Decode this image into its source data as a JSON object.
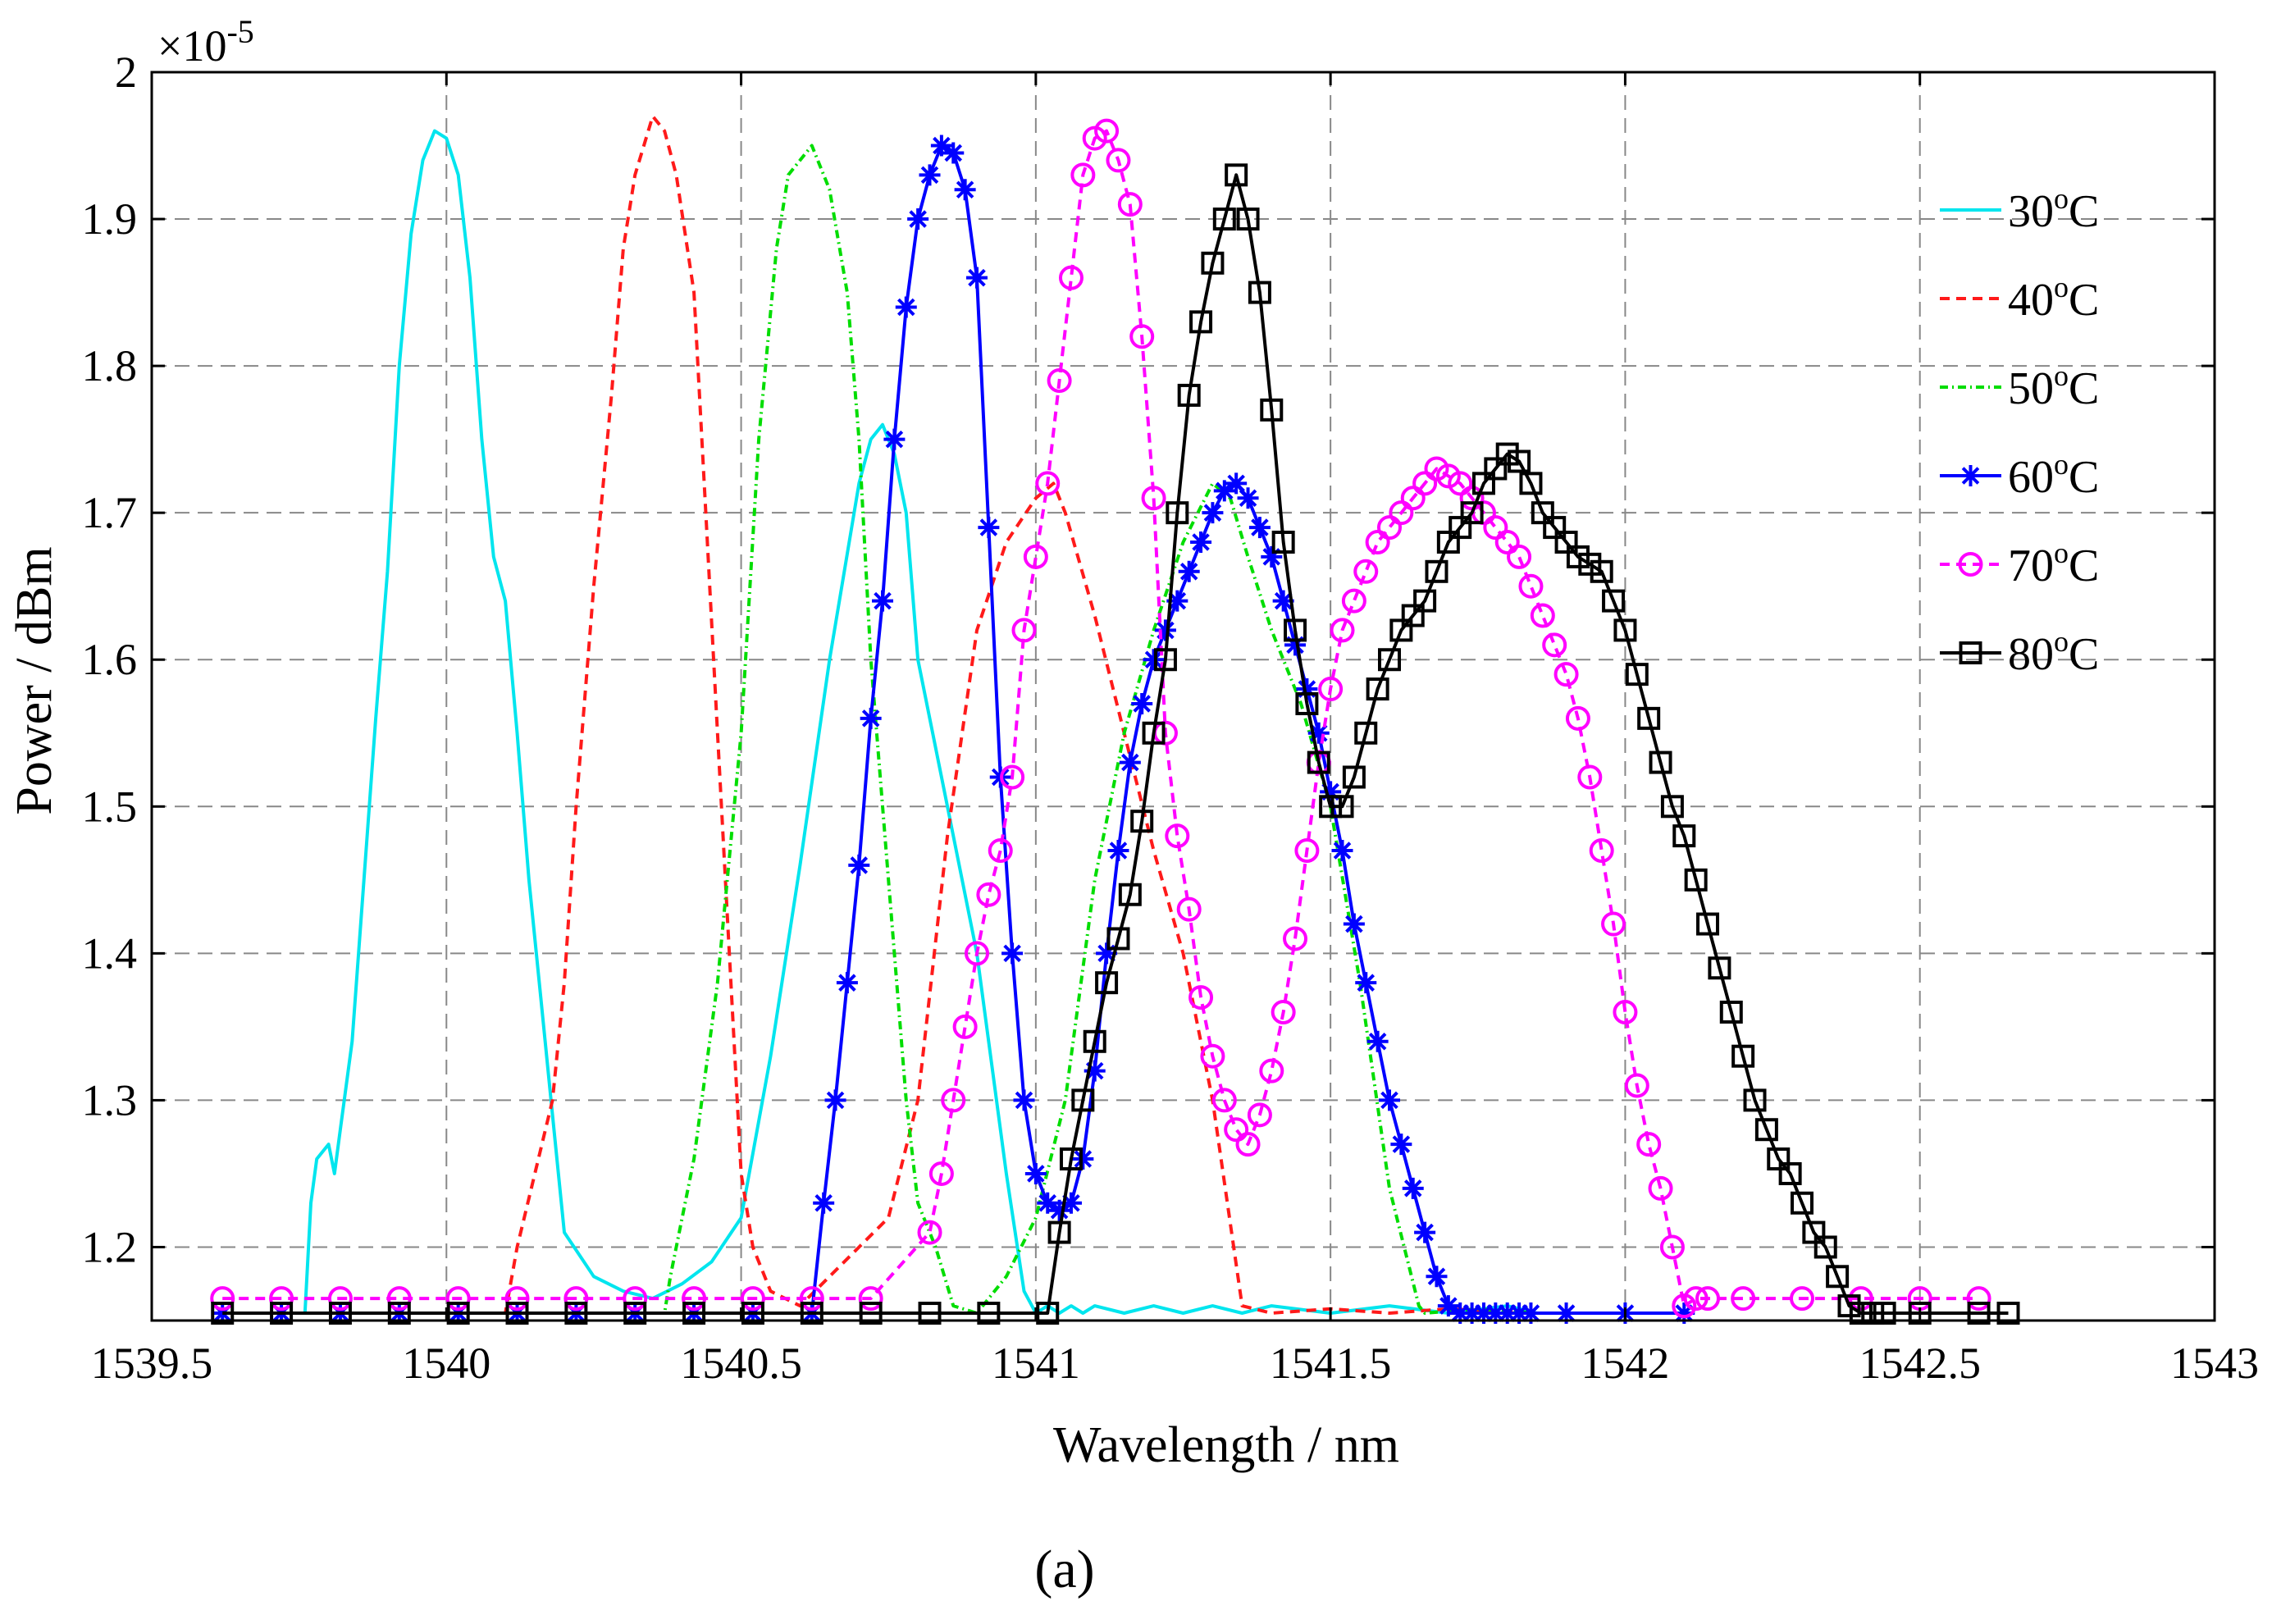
{
  "chart_data": {
    "type": "line",
    "title": "",
    "xlabel": "Wavelength / nm",
    "ylabel": "Power / dBm",
    "caption": "(a)",
    "y_multiplier": "×10",
    "y_multiplier_exponent": "-5",
    "xlim": [
      1539.6,
      1543
    ],
    "ylim": [
      1.15,
      2.0
    ],
    "grid": true,
    "legend_position": "top-right",
    "xticks": [
      1539.5,
      1540,
      1540.5,
      1541,
      1541.5,
      1542,
      1542.5,
      1543
    ],
    "xtick_labels": [
      "1539.5",
      "1540",
      "1540.5",
      "1541",
      "1541.5",
      "1542",
      "1542.5",
      "1543"
    ],
    "yticks": [
      1.2,
      1.3,
      1.4,
      1.5,
      1.6,
      1.7,
      1.8,
      1.9,
      2.0
    ],
    "ytick_labels": [
      "1.2",
      "1.3",
      "1.4",
      "1.5",
      "1.6",
      "1.7",
      "1.8",
      "1.9",
      "2"
    ],
    "series": [
      {
        "name": "30°C",
        "label_main": "30",
        "label_sup": "o",
        "label_unit": "C",
        "color": "#00e5ee",
        "dash": "",
        "marker": "none",
        "x": [
          1539.62,
          1539.76,
          1539.77,
          1539.78,
          1539.8,
          1539.81,
          1539.82,
          1539.84,
          1539.86,
          1539.88,
          1539.9,
          1539.92,
          1539.94,
          1539.96,
          1539.98,
          1540.0,
          1540.02,
          1540.04,
          1540.06,
          1540.08,
          1540.1,
          1540.12,
          1540.14,
          1540.16,
          1540.18,
          1540.2,
          1540.25,
          1540.3,
          1540.35,
          1540.4,
          1540.45,
          1540.5,
          1540.55,
          1540.6,
          1540.65,
          1540.7,
          1540.72,
          1540.74,
          1540.76,
          1540.78,
          1540.8,
          1540.85,
          1540.9,
          1540.95,
          1540.98,
          1541.0,
          1541.02,
          1541.04,
          1541.06,
          1541.08,
          1541.1,
          1541.15,
          1541.2,
          1541.25,
          1541.3,
          1541.35,
          1541.4,
          1541.5,
          1541.6,
          1541.7,
          1541.8,
          1541.85
        ],
        "y": [
          1.155,
          1.155,
          1.23,
          1.26,
          1.27,
          1.25,
          1.28,
          1.34,
          1.45,
          1.56,
          1.66,
          1.8,
          1.89,
          1.94,
          1.96,
          1.955,
          1.93,
          1.86,
          1.75,
          1.67,
          1.64,
          1.55,
          1.45,
          1.37,
          1.29,
          1.21,
          1.18,
          1.17,
          1.165,
          1.175,
          1.19,
          1.22,
          1.33,
          1.46,
          1.6,
          1.72,
          1.75,
          1.76,
          1.74,
          1.7,
          1.6,
          1.5,
          1.4,
          1.25,
          1.17,
          1.155,
          1.16,
          1.155,
          1.16,
          1.155,
          1.16,
          1.155,
          1.16,
          1.155,
          1.16,
          1.155,
          1.16,
          1.155,
          1.16,
          1.155,
          1.16,
          1.155
        ]
      },
      {
        "name": "40°C",
        "label_main": "40",
        "label_sup": "o",
        "label_unit": "C",
        "color": "#ff1a1a",
        "dash": "12,8",
        "marker": "none",
        "x": [
          1539.62,
          1540.1,
          1540.12,
          1540.15,
          1540.18,
          1540.2,
          1540.22,
          1540.25,
          1540.28,
          1540.3,
          1540.32,
          1540.35,
          1540.37,
          1540.39,
          1540.42,
          1540.44,
          1540.46,
          1540.48,
          1540.5,
          1540.52,
          1540.55,
          1540.6,
          1540.65,
          1540.7,
          1540.75,
          1540.8,
          1540.85,
          1540.9,
          1540.95,
          1541.0,
          1541.03,
          1541.05,
          1541.1,
          1541.15,
          1541.2,
          1541.25,
          1541.3,
          1541.35,
          1541.4,
          1541.5,
          1541.6,
          1541.7,
          1541.85
        ],
        "y": [
          1.155,
          1.155,
          1.2,
          1.25,
          1.3,
          1.38,
          1.5,
          1.65,
          1.78,
          1.88,
          1.93,
          1.97,
          1.96,
          1.93,
          1.85,
          1.7,
          1.55,
          1.4,
          1.25,
          1.2,
          1.17,
          1.16,
          1.18,
          1.2,
          1.22,
          1.3,
          1.48,
          1.62,
          1.68,
          1.71,
          1.72,
          1.7,
          1.63,
          1.55,
          1.47,
          1.4,
          1.3,
          1.16,
          1.155,
          1.158,
          1.155,
          1.158,
          1.155
        ]
      },
      {
        "name": "50°C",
        "label_main": "50",
        "label_sup": "o",
        "label_unit": "C",
        "color": "#00dd00",
        "dash": "10,5,2,5",
        "marker": "none",
        "x": [
          1539.62,
          1540.37,
          1540.38,
          1540.42,
          1540.46,
          1540.5,
          1540.53,
          1540.56,
          1540.58,
          1540.6,
          1540.62,
          1540.65,
          1540.68,
          1540.7,
          1540.72,
          1540.75,
          1540.78,
          1540.8,
          1540.83,
          1540.86,
          1540.9,
          1540.95,
          1541.0,
          1541.05,
          1541.1,
          1541.15,
          1541.2,
          1541.25,
          1541.3,
          1541.33,
          1541.36,
          1541.4,
          1541.45,
          1541.5,
          1541.55,
          1541.6,
          1541.65,
          1541.66,
          1541.75,
          1541.85
        ],
        "y": [
          1.155,
          1.155,
          1.18,
          1.26,
          1.38,
          1.55,
          1.75,
          1.88,
          1.93,
          1.94,
          1.95,
          1.92,
          1.85,
          1.75,
          1.6,
          1.45,
          1.3,
          1.23,
          1.2,
          1.16,
          1.155,
          1.18,
          1.22,
          1.3,
          1.45,
          1.55,
          1.62,
          1.68,
          1.72,
          1.71,
          1.67,
          1.62,
          1.57,
          1.5,
          1.38,
          1.24,
          1.16,
          1.155,
          1.158,
          1.155
        ]
      },
      {
        "name": "60°C",
        "label_main": "60",
        "label_sup": "o",
        "label_unit": "C",
        "color": "#0000ff",
        "dash": "",
        "marker": "star",
        "x": [
          1539.62,
          1539.72,
          1539.82,
          1539.92,
          1540.02,
          1540.12,
          1540.22,
          1540.32,
          1540.42,
          1540.52,
          1540.62,
          1540.64,
          1540.66,
          1540.68,
          1540.7,
          1540.72,
          1540.74,
          1540.76,
          1540.78,
          1540.8,
          1540.82,
          1540.84,
          1540.86,
          1540.88,
          1540.9,
          1540.92,
          1540.94,
          1540.96,
          1540.98,
          1541.0,
          1541.02,
          1541.04,
          1541.06,
          1541.08,
          1541.1,
          1541.12,
          1541.14,
          1541.16,
          1541.18,
          1541.2,
          1541.22,
          1541.24,
          1541.26,
          1541.28,
          1541.3,
          1541.32,
          1541.34,
          1541.36,
          1541.38,
          1541.4,
          1541.42,
          1541.44,
          1541.46,
          1541.48,
          1541.5,
          1541.52,
          1541.54,
          1541.56,
          1541.58,
          1541.6,
          1541.62,
          1541.64,
          1541.66,
          1541.68,
          1541.7,
          1541.72,
          1541.74,
          1541.76,
          1541.78,
          1541.8,
          1541.82,
          1541.84,
          1541.9,
          1542.0,
          1542.1
        ],
        "y": [
          1.155,
          1.155,
          1.155,
          1.155,
          1.155,
          1.155,
          1.155,
          1.155,
          1.155,
          1.155,
          1.155,
          1.23,
          1.3,
          1.38,
          1.46,
          1.56,
          1.64,
          1.75,
          1.84,
          1.9,
          1.93,
          1.95,
          1.945,
          1.92,
          1.86,
          1.69,
          1.52,
          1.4,
          1.3,
          1.25,
          1.23,
          1.225,
          1.23,
          1.26,
          1.32,
          1.4,
          1.47,
          1.53,
          1.57,
          1.6,
          1.62,
          1.64,
          1.66,
          1.68,
          1.7,
          1.715,
          1.72,
          1.71,
          1.69,
          1.67,
          1.64,
          1.61,
          1.58,
          1.55,
          1.51,
          1.47,
          1.42,
          1.38,
          1.34,
          1.3,
          1.27,
          1.24,
          1.21,
          1.18,
          1.16,
          1.155,
          1.155,
          1.155,
          1.155,
          1.155,
          1.155,
          1.155,
          1.155,
          1.155,
          1.155
        ]
      },
      {
        "name": "70°C",
        "label_main": "70",
        "label_sup": "o",
        "label_unit": "C",
        "color": "#ff00ff",
        "dash": "12,8",
        "marker": "circle",
        "x": [
          1539.62,
          1539.72,
          1539.82,
          1539.92,
          1540.02,
          1540.12,
          1540.22,
          1540.32,
          1540.42,
          1540.52,
          1540.62,
          1540.72,
          1540.82,
          1540.84,
          1540.86,
          1540.88,
          1540.9,
          1540.92,
          1540.94,
          1540.96,
          1540.98,
          1541.0,
          1541.02,
          1541.04,
          1541.06,
          1541.08,
          1541.1,
          1541.12,
          1541.14,
          1541.16,
          1541.18,
          1541.2,
          1541.22,
          1541.24,
          1541.26,
          1541.28,
          1541.3,
          1541.32,
          1541.34,
          1541.36,
          1541.38,
          1541.4,
          1541.42,
          1541.44,
          1541.46,
          1541.48,
          1541.5,
          1541.52,
          1541.54,
          1541.56,
          1541.58,
          1541.6,
          1541.62,
          1541.64,
          1541.66,
          1541.68,
          1541.7,
          1541.72,
          1541.74,
          1541.76,
          1541.78,
          1541.8,
          1541.82,
          1541.84,
          1541.86,
          1541.88,
          1541.9,
          1541.92,
          1541.94,
          1541.96,
          1541.98,
          1542.0,
          1542.02,
          1542.04,
          1542.06,
          1542.08,
          1542.1,
          1542.12,
          1542.14,
          1542.2,
          1542.3,
          1542.4,
          1542.5,
          1542.6
        ],
        "y": [
          1.165,
          1.165,
          1.165,
          1.165,
          1.165,
          1.165,
          1.165,
          1.165,
          1.165,
          1.165,
          1.165,
          1.165,
          1.21,
          1.25,
          1.3,
          1.35,
          1.4,
          1.44,
          1.47,
          1.52,
          1.62,
          1.67,
          1.72,
          1.79,
          1.86,
          1.93,
          1.955,
          1.96,
          1.94,
          1.91,
          1.82,
          1.71,
          1.55,
          1.48,
          1.43,
          1.37,
          1.33,
          1.3,
          1.28,
          1.27,
          1.29,
          1.32,
          1.36,
          1.41,
          1.47,
          1.53,
          1.58,
          1.62,
          1.64,
          1.66,
          1.68,
          1.69,
          1.7,
          1.71,
          1.72,
          1.73,
          1.725,
          1.72,
          1.71,
          1.7,
          1.69,
          1.68,
          1.67,
          1.65,
          1.63,
          1.61,
          1.59,
          1.56,
          1.52,
          1.47,
          1.42,
          1.36,
          1.31,
          1.27,
          1.24,
          1.2,
          1.16,
          1.165,
          1.165,
          1.165,
          1.165,
          1.165,
          1.165,
          1.165
        ]
      },
      {
        "name": "80°C",
        "label_main": "80",
        "label_sup": "o",
        "label_unit": "C",
        "color": "#000000",
        "dash": "",
        "marker": "square",
        "x": [
          1539.62,
          1539.72,
          1539.82,
          1539.92,
          1540.02,
          1540.12,
          1540.22,
          1540.32,
          1540.42,
          1540.52,
          1540.62,
          1540.72,
          1540.82,
          1540.92,
          1541.02,
          1541.04,
          1541.06,
          1541.08,
          1541.1,
          1541.12,
          1541.14,
          1541.16,
          1541.18,
          1541.2,
          1541.22,
          1541.24,
          1541.26,
          1541.28,
          1541.3,
          1541.32,
          1541.34,
          1541.36,
          1541.38,
          1541.4,
          1541.42,
          1541.44,
          1541.46,
          1541.48,
          1541.5,
          1541.52,
          1541.54,
          1541.56,
          1541.58,
          1541.6,
          1541.62,
          1541.64,
          1541.66,
          1541.68,
          1541.7,
          1541.72,
          1541.74,
          1541.76,
          1541.78,
          1541.8,
          1541.82,
          1541.84,
          1541.86,
          1541.88,
          1541.9,
          1541.92,
          1541.94,
          1541.96,
          1541.98,
          1542.0,
          1542.02,
          1542.04,
          1542.06,
          1542.08,
          1542.1,
          1542.12,
          1542.14,
          1542.16,
          1542.18,
          1542.2,
          1542.22,
          1542.24,
          1542.26,
          1542.28,
          1542.3,
          1542.32,
          1542.34,
          1542.36,
          1542.38,
          1542.4,
          1542.42,
          1542.44,
          1542.5,
          1542.6,
          1542.65
        ],
        "y": [
          1.155,
          1.155,
          1.155,
          1.155,
          1.155,
          1.155,
          1.155,
          1.155,
          1.155,
          1.155,
          1.155,
          1.155,
          1.155,
          1.155,
          1.155,
          1.21,
          1.26,
          1.3,
          1.34,
          1.38,
          1.41,
          1.44,
          1.49,
          1.55,
          1.6,
          1.7,
          1.78,
          1.83,
          1.87,
          1.9,
          1.93,
          1.9,
          1.85,
          1.77,
          1.68,
          1.62,
          1.57,
          1.53,
          1.5,
          1.5,
          1.52,
          1.55,
          1.58,
          1.6,
          1.62,
          1.63,
          1.64,
          1.66,
          1.68,
          1.69,
          1.7,
          1.72,
          1.73,
          1.74,
          1.735,
          1.72,
          1.7,
          1.69,
          1.68,
          1.67,
          1.665,
          1.66,
          1.64,
          1.62,
          1.59,
          1.56,
          1.53,
          1.5,
          1.48,
          1.45,
          1.42,
          1.39,
          1.36,
          1.33,
          1.3,
          1.28,
          1.26,
          1.25,
          1.23,
          1.21,
          1.2,
          1.18,
          1.16,
          1.155,
          1.155,
          1.155,
          1.155,
          1.155,
          1.155
        ]
      }
    ]
  }
}
